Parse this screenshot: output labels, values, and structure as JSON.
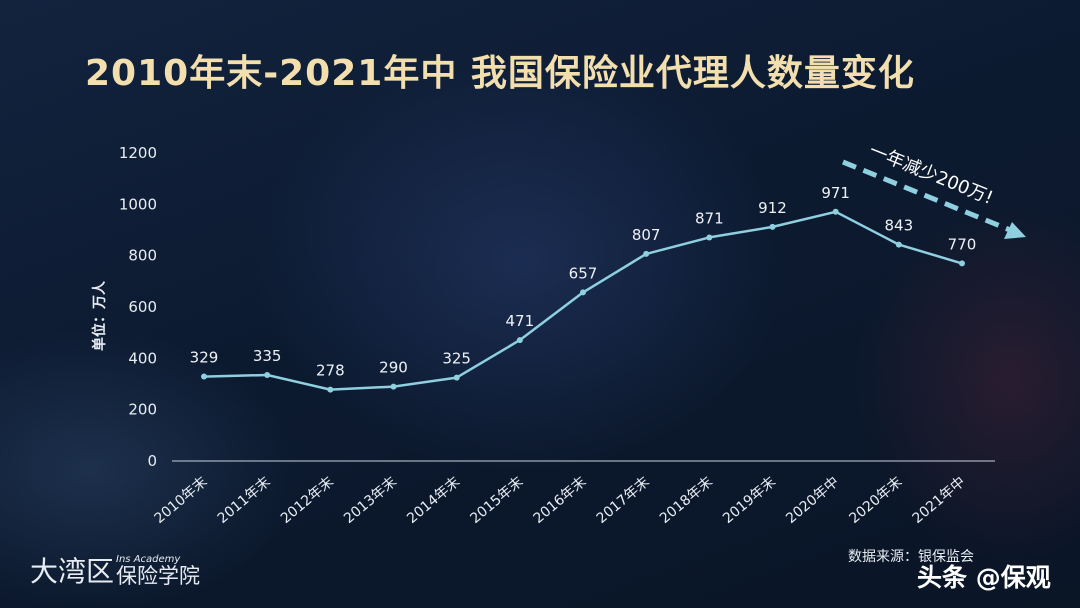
{
  "title": "2010年末-2021年中 我国保险业代理人数量变化",
  "chart_data": {
    "type": "line",
    "title": "2010年末-2021年中 我国保险业代理人数量变化",
    "ylabel": "单位：万人",
    "xlabel": "",
    "categories": [
      "2010年末",
      "2011年末",
      "2012年末",
      "2013年末",
      "2014年末",
      "2015年末",
      "2016年末",
      "2017年末",
      "2018年末",
      "2019年末",
      "2020年中",
      "2020年末",
      "2021年中"
    ],
    "values": [
      329,
      335,
      278,
      290,
      325,
      471,
      657,
      807,
      871,
      912,
      971,
      843,
      770
    ],
    "ylim": [
      0,
      1200
    ],
    "yticks": [
      0,
      200,
      400,
      600,
      800,
      1000,
      1200
    ],
    "grid": false,
    "annotation": "一年减少200万!"
  },
  "colors": {
    "line": "#8ecfe0",
    "title": "#f3dfae",
    "arrow": "#8ecfe0"
  },
  "brand": {
    "big": "大湾区",
    "small": "Ins Academy",
    "mid": "保险学院"
  },
  "source": "数据来源：银保监会",
  "watermark": "头条 @保观"
}
